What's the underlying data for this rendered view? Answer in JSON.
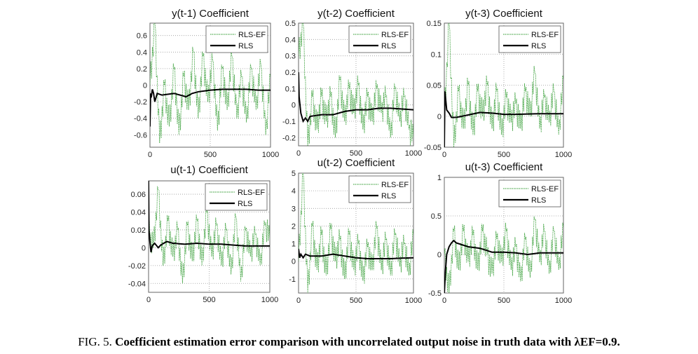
{
  "caption": {
    "label": "FIG. 5.",
    "text": "Coefficient estimation error comparison with uncorrelated output noise in truth data with λEF=0.9."
  },
  "colors": {
    "rls": "#000000",
    "rls_ef": "#2e9a2e",
    "grid": "#9a9a9a"
  },
  "chart_data": [
    {
      "type": "line",
      "title": "y(t-1) Coefficient",
      "xlim": [
        0,
        1000
      ],
      "ylim": [
        -0.75,
        0.75
      ],
      "xticks": [
        0,
        500,
        1000
      ],
      "yticks": [
        -0.6,
        -0.4,
        -0.2,
        0,
        0.2,
        0.4,
        0.6
      ],
      "grid": true,
      "legend": "top-right",
      "series": [
        {
          "name": "RLS-EF",
          "style": "dotted",
          "x_step": 40,
          "y": [
            0,
            0.75,
            -0.7,
            0.0,
            -0.5,
            0.2,
            -0.6,
            0.1,
            -0.3,
            0.4,
            -0.4,
            0.35,
            -0.2,
            0.3,
            -0.55,
            0.2,
            -0.3,
            0.35,
            -0.4,
            0.1,
            -0.45,
            0.2,
            -0.3,
            0.25,
            -0.6,
            0.1
          ]
        },
        {
          "name": "RLS",
          "style": "solid",
          "x": [
            0,
            5,
            10,
            20,
            30,
            40,
            60,
            100,
            200,
            300,
            350,
            400,
            500,
            600,
            700,
            800,
            900,
            1000
          ],
          "y": [
            -0.5,
            -0.1,
            -0.15,
            -0.05,
            -0.1,
            -0.2,
            -0.1,
            -0.12,
            -0.1,
            -0.14,
            -0.1,
            -0.08,
            -0.06,
            -0.05,
            -0.05,
            -0.05,
            -0.06,
            -0.06
          ]
        }
      ]
    },
    {
      "type": "line",
      "title": "y(t-2) Coefficient",
      "xlim": [
        0,
        1000
      ],
      "ylim": [
        -0.25,
        0.5
      ],
      "xticks": [
        0,
        500,
        1000
      ],
      "yticks": [
        -0.2,
        -0.1,
        0,
        0.1,
        0.2,
        0.3,
        0.4,
        0.5
      ],
      "grid": true,
      "legend": "top-right",
      "series": [
        {
          "name": "RLS-EF",
          "style": "dotted",
          "x_step": 40,
          "y": [
            0.3,
            0.5,
            -0.25,
            0.05,
            -0.15,
            0.05,
            -0.1,
            0.05,
            -0.2,
            0.15,
            -0.1,
            0.1,
            -0.05,
            0.12,
            -0.15,
            0.05,
            -0.1,
            0.1,
            -0.05,
            0.05,
            -0.2,
            0.1,
            -0.1,
            0.05,
            -0.15,
            -0.2
          ]
        },
        {
          "name": "RLS",
          "style": "solid",
          "x": [
            0,
            5,
            20,
            40,
            60,
            80,
            100,
            200,
            300,
            400,
            500,
            600,
            700,
            800,
            900,
            1000
          ],
          "y": [
            0.2,
            0.05,
            -0.05,
            -0.1,
            -0.08,
            -0.1,
            -0.07,
            -0.06,
            -0.06,
            -0.04,
            -0.03,
            -0.03,
            -0.02,
            -0.02,
            -0.025,
            -0.03
          ]
        }
      ]
    },
    {
      "type": "line",
      "title": "y(t-3) Coefficient",
      "xlim": [
        0,
        1000
      ],
      "ylim": [
        -0.05,
        0.15
      ],
      "xticks": [
        0,
        500,
        1000
      ],
      "yticks": [
        -0.05,
        0,
        0.05,
        0.1,
        0.15
      ],
      "grid": true,
      "legend": "top-right",
      "series": [
        {
          "name": "RLS-EF",
          "style": "dotted",
          "x_step": 40,
          "y": [
            0,
            0.15,
            -0.05,
            0.04,
            -0.02,
            0.05,
            -0.03,
            0.04,
            0.0,
            0.05,
            -0.02,
            0.04,
            -0.03,
            0.03,
            -0.01,
            0.02,
            -0.02,
            0.04,
            0.0,
            0.07,
            -0.02,
            0.03,
            -0.01,
            0.04,
            -0.03,
            0.06
          ]
        },
        {
          "name": "RLS",
          "style": "solid",
          "x": [
            0,
            5,
            10,
            20,
            40,
            60,
            100,
            200,
            300,
            400,
            500,
            600,
            800,
            1000
          ],
          "y": [
            -0.05,
            0.04,
            0.03,
            0.01,
            0.005,
            -0.002,
            -0.002,
            0.002,
            0.006,
            0.005,
            0.003,
            0.003,
            0.004,
            0.004
          ]
        }
      ]
    },
    {
      "type": "line",
      "title": "u(t-1) Coefficient",
      "xlim": [
        0,
        1000
      ],
      "ylim": [
        -0.05,
        0.075
      ],
      "xticks": [
        0,
        500,
        1000
      ],
      "yticks": [
        -0.04,
        -0.02,
        0,
        0.02,
        0.04,
        0.06
      ],
      "grid": true,
      "legend": "top-right",
      "series": [
        {
          "name": "RLS-EF",
          "style": "dotted",
          "x_step": 40,
          "y": [
            0.02,
            0.0,
            0.065,
            -0.02,
            0.03,
            -0.01,
            0.02,
            -0.04,
            0.025,
            -0.015,
            0.03,
            -0.02,
            0.04,
            -0.01,
            0.025,
            -0.02,
            0.02,
            -0.03,
            0.035,
            -0.038,
            0.02,
            -0.01,
            0.015,
            -0.02,
            0.025,
            0.01
          ]
        },
        {
          "name": "RLS",
          "style": "solid",
          "x": [
            0,
            3,
            10,
            20,
            30,
            50,
            80,
            100,
            150,
            200,
            300,
            400,
            500,
            600,
            700,
            800,
            900,
            1000
          ],
          "y": [
            0.075,
            0.02,
            0.008,
            -0.005,
            0.002,
            0.005,
            0.0,
            0.003,
            0.007,
            0.005,
            0.004,
            0.005,
            0.004,
            0.004,
            0.003,
            0.002,
            0.002,
            0.002
          ]
        }
      ]
    },
    {
      "type": "line",
      "title": "u(t-2) Coefficient",
      "xlim": [
        0,
        1000
      ],
      "ylim": [
        -1.8,
        5
      ],
      "xticks": [
        0,
        500,
        1000
      ],
      "yticks": [
        -1,
        0,
        1,
        2,
        3,
        4,
        5
      ],
      "grid": true,
      "legend": "top-right",
      "series": [
        {
          "name": "RLS-EF",
          "style": "dotted",
          "x_step": 40,
          "y": [
            0,
            5,
            -1.8,
            2,
            -0.5,
            1.5,
            -0.8,
            1.8,
            0,
            1.2,
            -1,
            1.5,
            -0.5,
            1,
            -1.1,
            0.8,
            -0.5,
            1.9,
            -0.5,
            1.2,
            -0.8,
            1.5,
            -0.3,
            1,
            -0.8,
            1.5
          ]
        },
        {
          "name": "RLS",
          "style": "solid",
          "x": [
            0,
            10,
            20,
            40,
            60,
            100,
            200,
            300,
            400,
            500,
            600,
            700,
            800,
            900,
            1000
          ],
          "y": [
            0.7,
            0.2,
            0.4,
            0.2,
            0.4,
            0.3,
            0.3,
            0.4,
            0.3,
            0.2,
            0.15,
            0.15,
            0.15,
            0.18,
            0.2
          ]
        }
      ]
    },
    {
      "type": "line",
      "title": "u(t-3) Coefficient",
      "xlim": [
        0,
        1000
      ],
      "ylim": [
        -0.5,
        1
      ],
      "xticks": [
        0,
        500,
        1000
      ],
      "yticks": [
        -0.5,
        0,
        0.5,
        1
      ],
      "grid": true,
      "legend": "top-right",
      "series": [
        {
          "name": "RLS-EF",
          "style": "dotted",
          "x_step": 40,
          "y": [
            0,
            -0.5,
            0.3,
            -0.2,
            0.3,
            -0.1,
            0.25,
            -0.2,
            0.3,
            0.0,
            -0.25,
            0.2,
            -0.1,
            0.3,
            -0.2,
            0.1,
            -0.35,
            0.2,
            -0.3,
            0.45,
            -0.1,
            0.3,
            -0.25,
            0.3,
            -0.2,
            0.35
          ]
        },
        {
          "name": "RLS",
          "style": "solid",
          "x": [
            0,
            10,
            20,
            40,
            60,
            80,
            100,
            200,
            300,
            400,
            500,
            600,
            700,
            800,
            900,
            1000
          ],
          "y": [
            -0.5,
            -0.2,
            0.0,
            0.1,
            0.15,
            0.18,
            0.15,
            0.1,
            0.08,
            0.03,
            0.03,
            0.02,
            0.0,
            0.02,
            0.02,
            0.02
          ]
        }
      ]
    }
  ]
}
